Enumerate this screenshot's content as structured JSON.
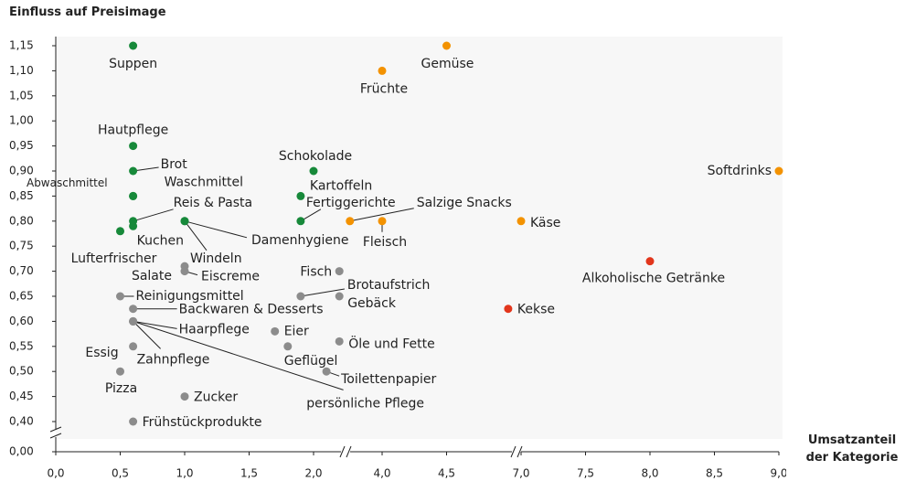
{
  "chart_data": {
    "type": "scatter",
    "y_label": "Einfluss auf Preisimage",
    "x_label": "Umsatzanteil der Kategorie",
    "labels": [
      "Suppen",
      "Hautpflege",
      "Brot",
      "Waschmittel",
      "Abwaschmittel",
      "Reis & Pasta",
      "Kuchen",
      "Lufterfrischer",
      "Windeln",
      "Damenhygiene",
      "Fertiggerichte",
      "Kartoffeln",
      "Schokolade",
      "Gemüse",
      "Früchte",
      "Softdrinks",
      "Salzige Snacks",
      "Fleisch",
      "Käse",
      "Alkoholische Getränke",
      "Kekse",
      "Salate",
      "Eiscreme",
      "Reinigungsmittel",
      "Backwaren & Desserts",
      "Haarpflege",
      "Zahnpflege",
      "persönliche Pflege",
      "Essig",
      "Pizza",
      "Zucker",
      "Frühstückprodukte",
      "Fisch",
      "Brotaufstrich",
      "Gebäck",
      "Eier",
      "Geflügel",
      "Öle und Fette",
      "Toilettenpapier"
    ],
    "x": [
      0.6,
      0.6,
      0.6,
      0.6,
      0.6,
      0.6,
      0.6,
      0.5,
      1.0,
      1.0,
      1.9,
      1.9,
      2.0,
      4.5,
      4.0,
      9.0,
      3.75,
      4.0,
      7.0,
      8.0,
      6.9,
      1.0,
      1.0,
      0.5,
      0.6,
      0.6,
      0.6,
      0.6,
      0.6,
      0.5,
      1.0,
      0.6,
      2.2,
      1.9,
      2.2,
      1.7,
      1.8,
      2.2,
      2.1
    ],
    "values": [
      1.15,
      0.95,
      0.9,
      0.85,
      0.85,
      0.8,
      0.79,
      0.78,
      0.8,
      0.8,
      0.8,
      0.85,
      0.9,
      1.15,
      1.1,
      0.9,
      0.8,
      0.8,
      0.8,
      0.72,
      0.625,
      0.71,
      0.7,
      0.65,
      0.625,
      0.6,
      0.6,
      0.6,
      0.55,
      0.5,
      0.45,
      0.4,
      0.7,
      0.65,
      0.65,
      0.58,
      0.55,
      0.56,
      0.5
    ],
    "point_colors": [
      "#17893a",
      "#17893a",
      "#17893a",
      "#17893a",
      "#17893a",
      "#17893a",
      "#17893a",
      "#17893a",
      "#17893a",
      "#17893a",
      "#17893a",
      "#17893a",
      "#17893a",
      "#f39200",
      "#f39200",
      "#f39200",
      "#f39200",
      "#f39200",
      "#f39200",
      "#e2361c",
      "#e2361c",
      "#8c8c8c",
      "#8c8c8c",
      "#8c8c8c",
      "#8c8c8c",
      "#8c8c8c",
      "#8c8c8c",
      "#8c8c8c",
      "#8c8c8c",
      "#8c8c8c",
      "#8c8c8c",
      "#8c8c8c",
      "#8c8c8c",
      "#8c8c8c",
      "#8c8c8c",
      "#8c8c8c",
      "#8c8c8c",
      "#8c8c8c",
      "#8c8c8c"
    ],
    "xticks": [
      {
        "value": 0,
        "label": "0,0"
      },
      {
        "value": 0.5,
        "label": "0,5"
      },
      {
        "value": 1,
        "label": "1,0"
      },
      {
        "value": 1.5,
        "label": "1,5"
      },
      {
        "value": 2,
        "label": "2,0"
      },
      {
        "value": 4,
        "label": "4,0"
      },
      {
        "value": 4.5,
        "label": "4,5"
      },
      {
        "value": 7,
        "label": "7,0"
      },
      {
        "value": 7.5,
        "label": "7,5"
      },
      {
        "value": 8,
        "label": "8,0"
      },
      {
        "value": 8.5,
        "label": "8,5"
      },
      {
        "value": 9,
        "label": "9,0"
      }
    ],
    "yticks": [
      {
        "value": 0,
        "label": "0,00"
      },
      {
        "value": 0.4,
        "label": "0,40"
      },
      {
        "value": 0.45,
        "label": "0,45"
      },
      {
        "value": 0.5,
        "label": "0,50"
      },
      {
        "value": 0.55,
        "label": "0,55"
      },
      {
        "value": 0.6,
        "label": "0,60"
      },
      {
        "value": 0.65,
        "label": "0,65"
      },
      {
        "value": 0.7,
        "label": "0,70"
      },
      {
        "value": 0.75,
        "label": "0,75"
      },
      {
        "value": 0.8,
        "label": "0,80"
      },
      {
        "value": 0.85,
        "label": "0,85"
      },
      {
        "value": 0.9,
        "label": "0,90"
      },
      {
        "value": 0.95,
        "label": "0,95"
      },
      {
        "value": 1,
        "label": "1,00"
      },
      {
        "value": 1.05,
        "label": "1,05"
      },
      {
        "value": 1.1,
        "label": "1,10"
      },
      {
        "value": 1.15,
        "label": "1,15"
      }
    ],
    "ylim": [
      0,
      1.15
    ],
    "xlim": [
      0,
      9
    ]
  }
}
